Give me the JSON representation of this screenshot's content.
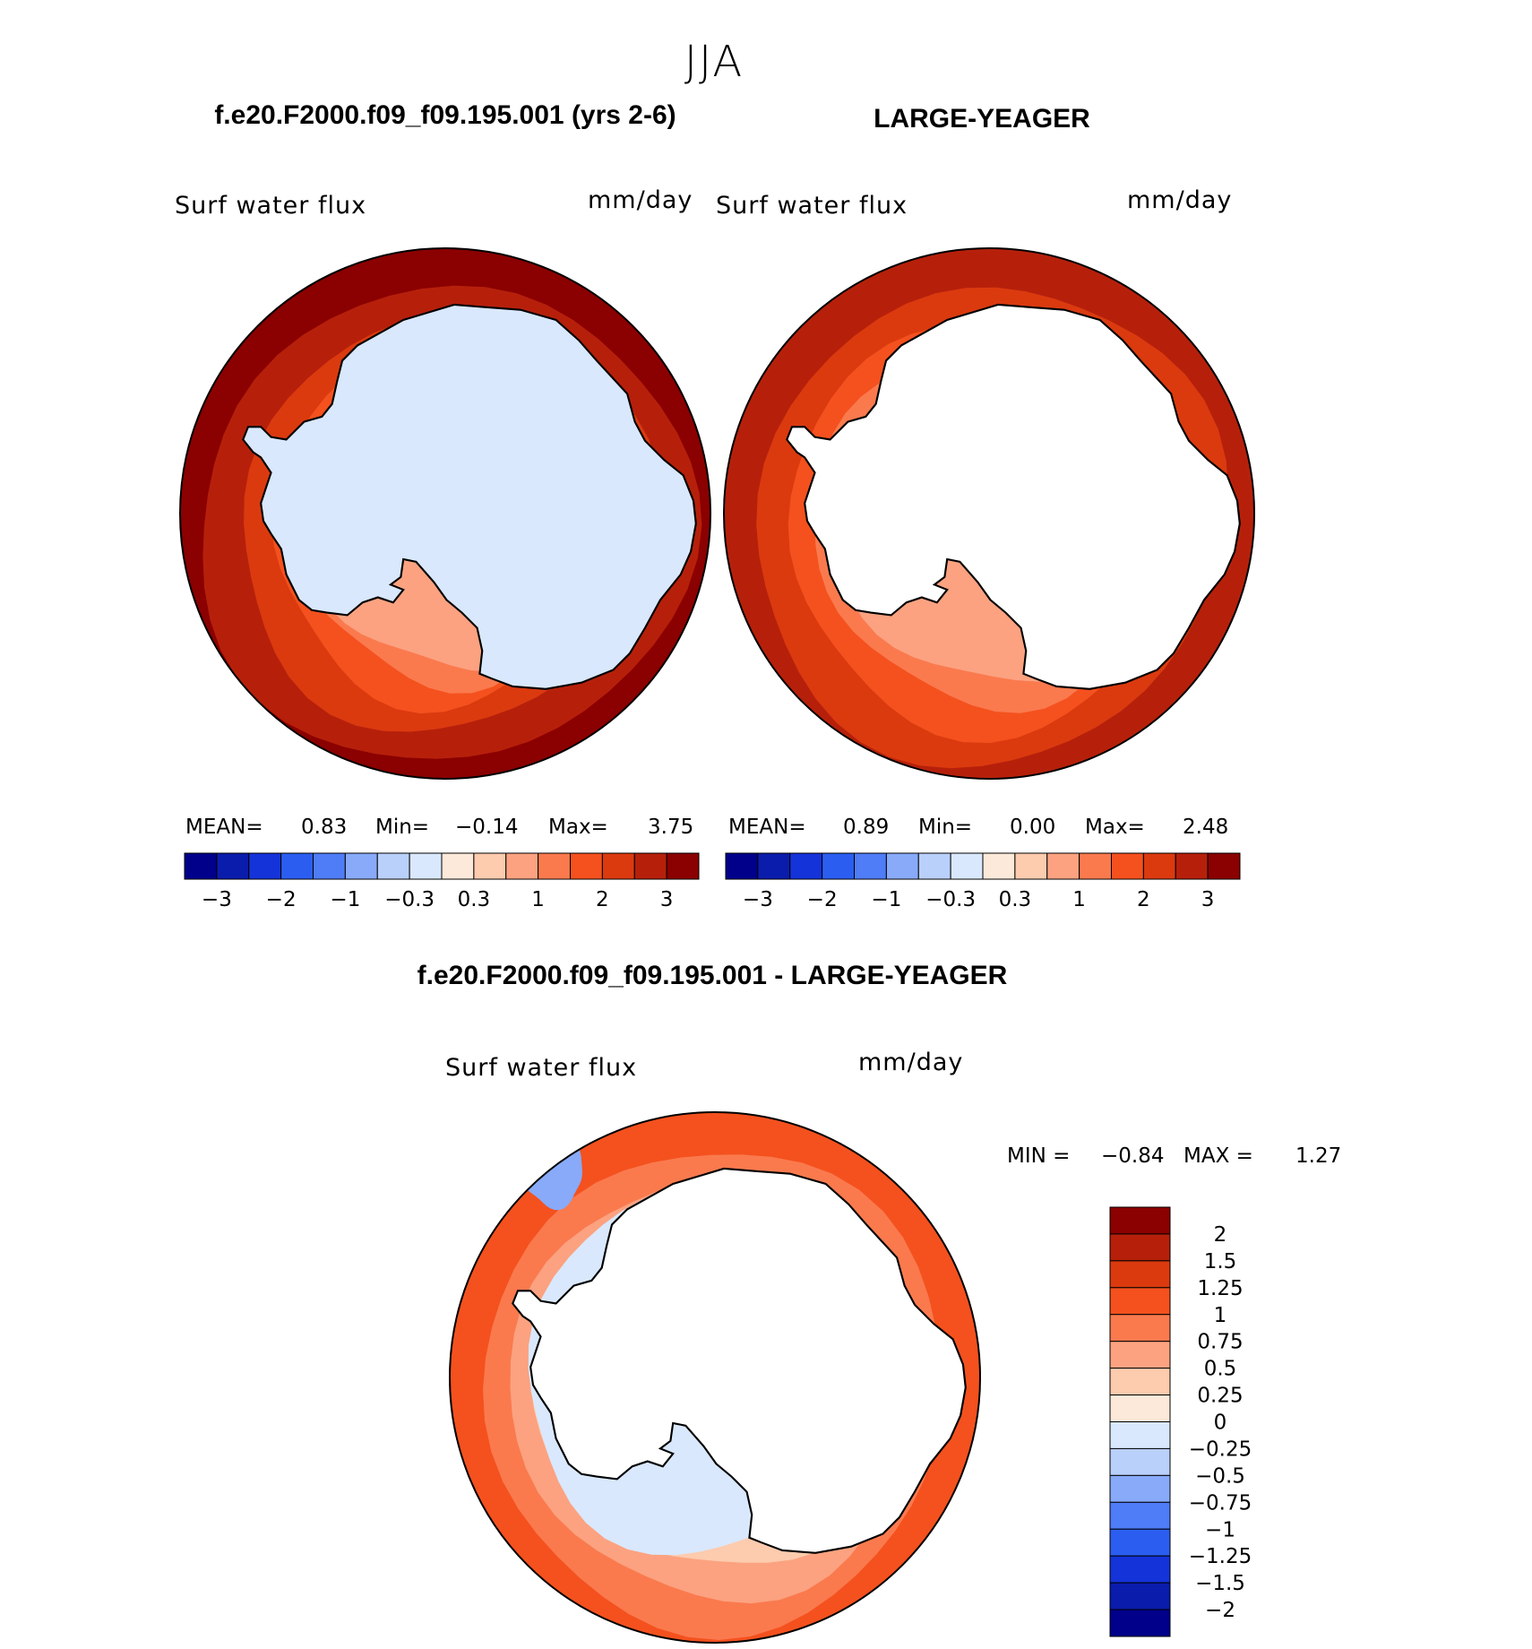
{
  "page_title": "JJA",
  "colors": {
    "abs_scale": [
      "#00008b",
      "#0a1cab",
      "#1433d8",
      "#2b5ef0",
      "#4f7cf7",
      "#88aaf9",
      "#b9d0fb",
      "#d9e8fd",
      "#fde9d9",
      "#fdcbae",
      "#fca280",
      "#fa7a4e",
      "#f4511e",
      "#db3a0f",
      "#b6200b",
      "#8b0000"
    ],
    "diff_scale": [
      "#00008b",
      "#0a1cab",
      "#1433d8",
      "#2b5ef0",
      "#4f7cf7",
      "#88aaf9",
      "#b9d0fb",
      "#d9e8fd",
      "#fde9d9",
      "#fdcbae",
      "#fca280",
      "#fa7a4e",
      "#f4511e",
      "#db3a0f",
      "#b6200b",
      "#8b0000"
    ],
    "land_fill": "#ffffff",
    "coast": "#000000"
  },
  "chart_data": [
    {
      "type": "heatmap",
      "projection": "south-polar-stereographic",
      "title": "f.e20.F2000.f09_f09.195.001 (yrs 2-6)",
      "variable_label": "Surf water flux",
      "units_label": "mm/day",
      "stats": {
        "mean_label": "MEAN=",
        "mean": "0.83",
        "min_label": "Min=",
        "min": "−0.14",
        "max_label": "Max=",
        "max": "3.75"
      },
      "colorbar": {
        "orientation": "horizontal",
        "ticks": [
          "−3",
          "−2",
          "−1",
          "−0.3",
          "0.3",
          "1",
          "2",
          "3"
        ]
      },
      "field_levels": [
        10,
        11,
        12,
        13,
        14,
        15
      ],
      "antarctic_fill_level": 7
    },
    {
      "type": "heatmap",
      "projection": "south-polar-stereographic",
      "title": "LARGE-YEAGER",
      "variable_label": "Surf water flux",
      "units_label": "mm/day",
      "stats": {
        "mean_label": "MEAN=",
        "mean": "0.89",
        "min_label": "Min=",
        "min": "0.00",
        "max_label": "Max=",
        "max": "2.48"
      },
      "colorbar": {
        "orientation": "horizontal",
        "ticks": [
          "−3",
          "−2",
          "−1",
          "−0.3",
          "0.3",
          "1",
          "2",
          "3"
        ]
      },
      "field_levels": [
        10,
        11,
        12,
        13,
        14
      ],
      "antarctic_fill_level": -1
    },
    {
      "type": "heatmap",
      "projection": "south-polar-stereographic",
      "title": "f.e20.F2000.f09_f09.195.001 - LARGE-YEAGER",
      "variable_label": "Surf water flux",
      "units_label": "mm/day",
      "stats": {
        "min_label": "MIN =",
        "min": "−0.84",
        "max_label": "MAX =",
        "max": "1.27"
      },
      "colorbar": {
        "orientation": "vertical",
        "ticks": [
          "2",
          "1.5",
          "1.25",
          "1",
          "0.75",
          "0.5",
          "0.25",
          "0",
          "−0.25",
          "−0.5",
          "−0.75",
          "−1",
          "−1.25",
          "−1.5",
          "−2"
        ]
      },
      "field_levels": [
        8,
        9,
        10,
        11,
        12
      ],
      "antarctic_fill_level": -1
    }
  ]
}
